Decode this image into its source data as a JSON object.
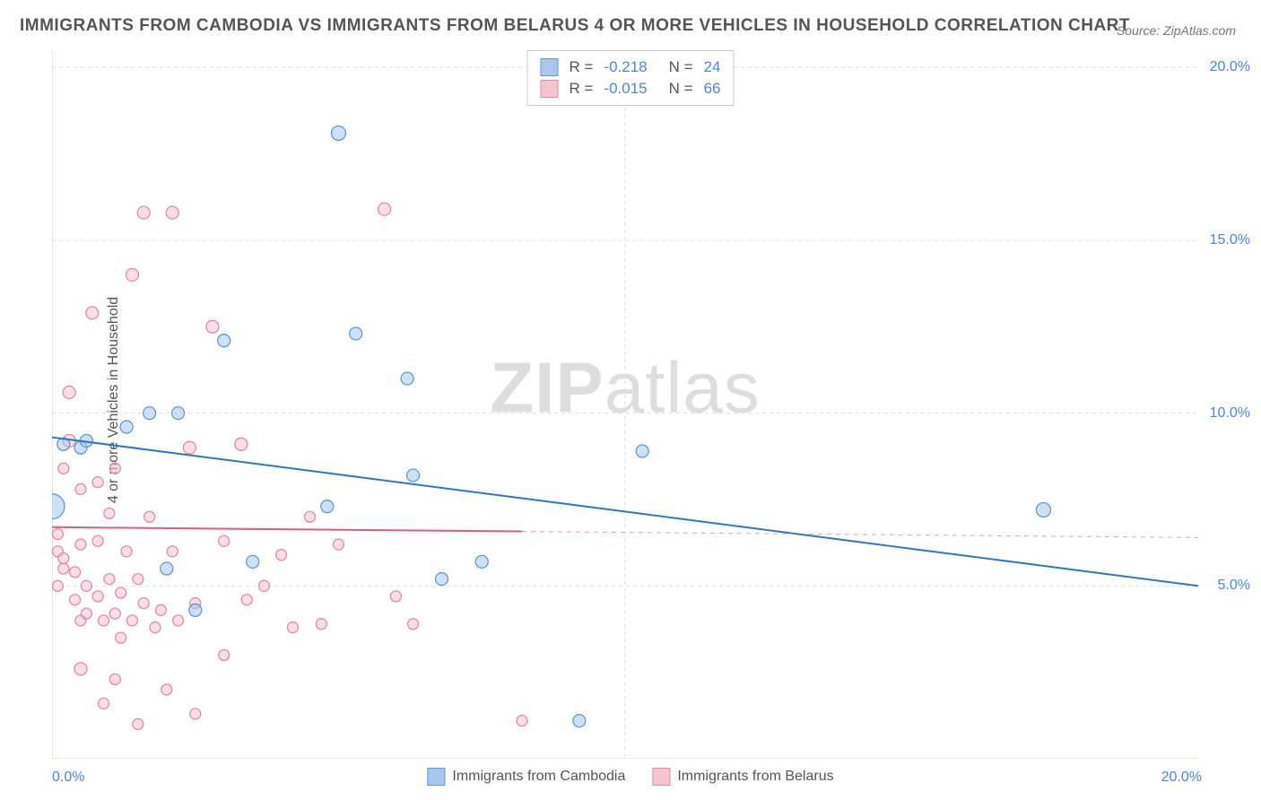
{
  "title": "IMMIGRANTS FROM CAMBODIA VS IMMIGRANTS FROM BELARUS 4 OR MORE VEHICLES IN HOUSEHOLD CORRELATION CHART",
  "source": "Source: ZipAtlas.com",
  "watermark": {
    "zip": "ZIP",
    "atlas": "atlas"
  },
  "y_axis_label": "4 or more Vehicles in Household",
  "chart": {
    "type": "scatter",
    "xlim": [
      0,
      20
    ],
    "ylim": [
      0,
      20.5
    ],
    "x_ticks": [
      {
        "value": 0,
        "label": "0.0%"
      },
      {
        "value": 20,
        "label": "20.0%"
      }
    ],
    "y_ticks": [
      {
        "value": 5,
        "label": "5.0%"
      },
      {
        "value": 10,
        "label": "10.0%"
      },
      {
        "value": 15,
        "label": "15.0%"
      },
      {
        "value": 20,
        "label": "20.0%"
      }
    ],
    "y_gridlines": [
      5,
      10,
      15,
      20
    ],
    "x_gridlines": [
      10
    ],
    "grid_color": "#dddddd",
    "grid_dash": "4,4",
    "border_color": "#cccccc",
    "series": [
      {
        "id": "cambodia",
        "label": "Immigrants from Cambodia",
        "fill": "#a7c7ed",
        "stroke": "#5b9bd5",
        "line_color": "#2e75cc",
        "line_width": 2,
        "R": "-0.218",
        "N": "24",
        "trend": {
          "x1": 0,
          "y1": 9.3,
          "x2": 20,
          "y2": 5.0,
          "solid_until": 20
        },
        "points": [
          {
            "x": 0.0,
            "y": 7.3,
            "r": 14
          },
          {
            "x": 0.2,
            "y": 9.1,
            "r": 7
          },
          {
            "x": 0.5,
            "y": 9.0,
            "r": 7
          },
          {
            "x": 0.6,
            "y": 9.2,
            "r": 7
          },
          {
            "x": 1.3,
            "y": 9.6,
            "r": 7
          },
          {
            "x": 1.7,
            "y": 10.0,
            "r": 7
          },
          {
            "x": 2.2,
            "y": 10.0,
            "r": 7
          },
          {
            "x": 3.0,
            "y": 12.1,
            "r": 7
          },
          {
            "x": 2.0,
            "y": 5.5,
            "r": 7
          },
          {
            "x": 2.5,
            "y": 4.3,
            "r": 7
          },
          {
            "x": 3.5,
            "y": 5.7,
            "r": 7
          },
          {
            "x": 4.8,
            "y": 7.3,
            "r": 7
          },
          {
            "x": 5.0,
            "y": 18.1,
            "r": 8
          },
          {
            "x": 5.3,
            "y": 12.3,
            "r": 7
          },
          {
            "x": 6.2,
            "y": 11.0,
            "r": 7
          },
          {
            "x": 6.3,
            "y": 8.2,
            "r": 7
          },
          {
            "x": 6.8,
            "y": 5.2,
            "r": 7
          },
          {
            "x": 7.5,
            "y": 5.7,
            "r": 7
          },
          {
            "x": 9.2,
            "y": 1.1,
            "r": 7
          },
          {
            "x": 10.3,
            "y": 8.9,
            "r": 7
          },
          {
            "x": 17.3,
            "y": 7.2,
            "r": 8
          }
        ]
      },
      {
        "id": "belarus",
        "label": "Immigrants from Belarus",
        "fill": "#f5c4ce",
        "stroke": "#e888a0",
        "line_color": "#e05b7d",
        "line_width": 2,
        "R": "-0.015",
        "N": "66",
        "trend": {
          "x1": 0,
          "y1": 6.7,
          "x2": 20,
          "y2": 6.4,
          "solid_until": 8.2
        },
        "points": [
          {
            "x": 0.1,
            "y": 6.5,
            "r": 6
          },
          {
            "x": 0.1,
            "y": 6.0,
            "r": 6
          },
          {
            "x": 0.2,
            "y": 5.5,
            "r": 6
          },
          {
            "x": 0.1,
            "y": 5.0,
            "r": 6
          },
          {
            "x": 0.2,
            "y": 5.8,
            "r": 6
          },
          {
            "x": 0.2,
            "y": 8.4,
            "r": 6
          },
          {
            "x": 0.3,
            "y": 9.2,
            "r": 7
          },
          {
            "x": 0.3,
            "y": 10.6,
            "r": 7
          },
          {
            "x": 0.4,
            "y": 5.4,
            "r": 6
          },
          {
            "x": 0.4,
            "y": 4.6,
            "r": 6
          },
          {
            "x": 0.5,
            "y": 6.2,
            "r": 6
          },
          {
            "x": 0.5,
            "y": 7.8,
            "r": 6
          },
          {
            "x": 0.5,
            "y": 4.0,
            "r": 6
          },
          {
            "x": 0.5,
            "y": 2.6,
            "r": 7
          },
          {
            "x": 0.6,
            "y": 5.0,
            "r": 6
          },
          {
            "x": 0.6,
            "y": 4.2,
            "r": 6
          },
          {
            "x": 0.7,
            "y": 12.9,
            "r": 7
          },
          {
            "x": 0.8,
            "y": 8.0,
            "r": 6
          },
          {
            "x": 0.8,
            "y": 6.3,
            "r": 6
          },
          {
            "x": 0.8,
            "y": 4.7,
            "r": 6
          },
          {
            "x": 0.9,
            "y": 4.0,
            "r": 6
          },
          {
            "x": 0.9,
            "y": 1.6,
            "r": 6
          },
          {
            "x": 1.0,
            "y": 7.1,
            "r": 6
          },
          {
            "x": 1.0,
            "y": 5.2,
            "r": 6
          },
          {
            "x": 1.1,
            "y": 8.4,
            "r": 6
          },
          {
            "x": 1.1,
            "y": 4.2,
            "r": 6
          },
          {
            "x": 1.1,
            "y": 2.3,
            "r": 6
          },
          {
            "x": 1.2,
            "y": 4.8,
            "r": 6
          },
          {
            "x": 1.2,
            "y": 3.5,
            "r": 6
          },
          {
            "x": 1.3,
            "y": 6.0,
            "r": 6
          },
          {
            "x": 1.4,
            "y": 14.0,
            "r": 7
          },
          {
            "x": 1.4,
            "y": 4.0,
            "r": 6
          },
          {
            "x": 1.5,
            "y": 5.2,
            "r": 6
          },
          {
            "x": 1.5,
            "y": 1.0,
            "r": 6
          },
          {
            "x": 1.6,
            "y": 15.8,
            "r": 7
          },
          {
            "x": 1.6,
            "y": 4.5,
            "r": 6
          },
          {
            "x": 1.7,
            "y": 7.0,
            "r": 6
          },
          {
            "x": 1.8,
            "y": 3.8,
            "r": 6
          },
          {
            "x": 1.9,
            "y": 4.3,
            "r": 6
          },
          {
            "x": 2.0,
            "y": 2.0,
            "r": 6
          },
          {
            "x": 2.1,
            "y": 15.8,
            "r": 7
          },
          {
            "x": 2.1,
            "y": 6.0,
            "r": 6
          },
          {
            "x": 2.2,
            "y": 4.0,
            "r": 6
          },
          {
            "x": 2.4,
            "y": 9.0,
            "r": 7
          },
          {
            "x": 2.5,
            "y": 4.5,
            "r": 6
          },
          {
            "x": 2.5,
            "y": 1.3,
            "r": 6
          },
          {
            "x": 2.8,
            "y": 12.5,
            "r": 7
          },
          {
            "x": 3.0,
            "y": 6.3,
            "r": 6
          },
          {
            "x": 3.0,
            "y": 3.0,
            "r": 6
          },
          {
            "x": 3.3,
            "y": 9.1,
            "r": 7
          },
          {
            "x": 3.4,
            "y": 4.6,
            "r": 6
          },
          {
            "x": 3.7,
            "y": 5.0,
            "r": 6
          },
          {
            "x": 4.0,
            "y": 5.9,
            "r": 6
          },
          {
            "x": 4.2,
            "y": 3.8,
            "r": 6
          },
          {
            "x": 4.5,
            "y": 7.0,
            "r": 6
          },
          {
            "x": 4.7,
            "y": 3.9,
            "r": 6
          },
          {
            "x": 5.0,
            "y": 6.2,
            "r": 6
          },
          {
            "x": 5.8,
            "y": 15.9,
            "r": 7
          },
          {
            "x": 6.0,
            "y": 4.7,
            "r": 6
          },
          {
            "x": 6.3,
            "y": 3.9,
            "r": 6
          },
          {
            "x": 8.2,
            "y": 1.1,
            "r": 6
          }
        ]
      }
    ]
  },
  "top_legend": {
    "r_prefix": "R  =",
    "n_prefix": "N  ="
  }
}
